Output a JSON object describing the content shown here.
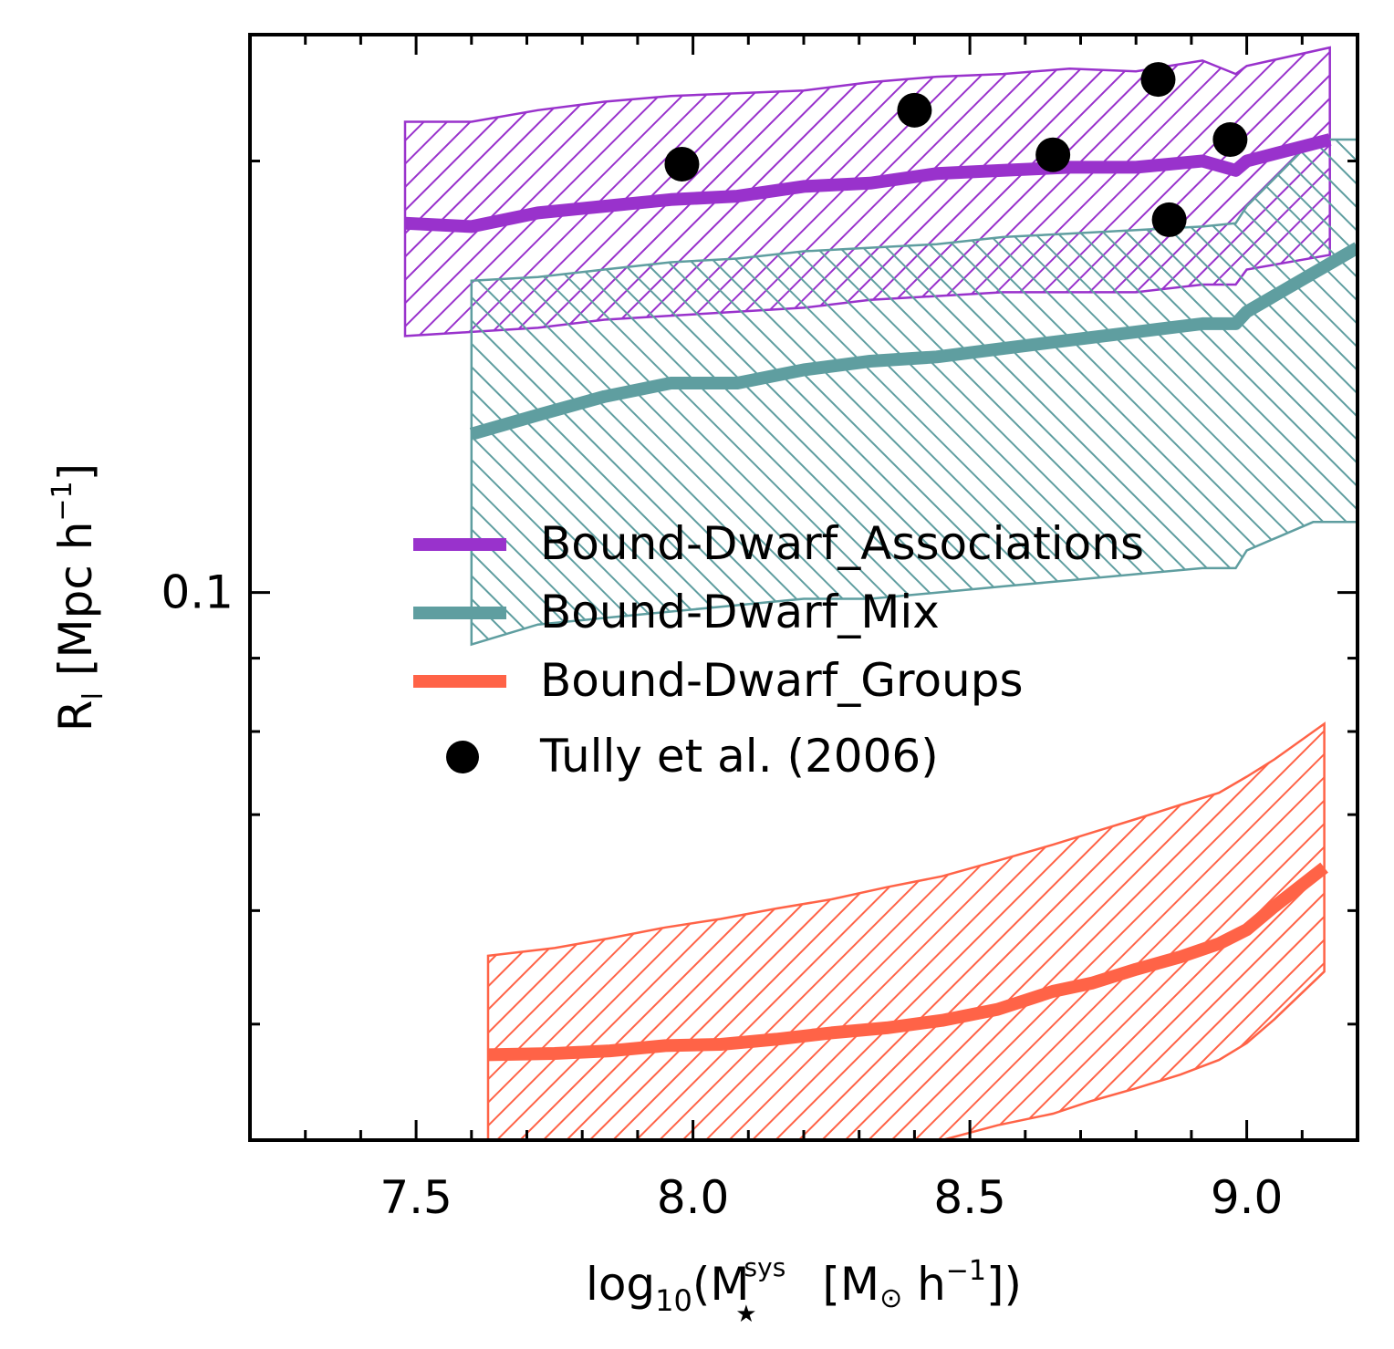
{
  "chart_data": {
    "type": "line",
    "x_label": {
      "prefix": "log",
      "sub": "10",
      "open": "(M",
      "sup": "sys",
      "star": "★",
      "unit_open": "[M",
      "sun": "⊙",
      "unit_h": " h",
      "unit_sup": "−1",
      "close": "])"
    },
    "y_label": {
      "base": "R",
      "sub": "l",
      "unit_open": "[Mpc h",
      "unit_sup": "−1",
      "close": "]"
    },
    "xlim": [
      7.2,
      9.2
    ],
    "ylim": [
      0.0415,
      0.245
    ],
    "yscale": "log",
    "x_ticks": [
      {
        "value": 7.5,
        "label": "7.5"
      },
      {
        "value": 8.0,
        "label": "8.0"
      },
      {
        "value": 8.5,
        "label": "8.5"
      },
      {
        "value": 9.0,
        "label": "9.0"
      }
    ],
    "y_ticks": [
      {
        "value": 0.1,
        "label": "0.1"
      }
    ],
    "y_minor_ticks": [
      0.05,
      0.06,
      0.07,
      0.08,
      0.09,
      0.2
    ],
    "series": [
      {
        "name": "Bound-Dwarf_Associations",
        "color": "#9932CC",
        "x": [
          7.48,
          7.6,
          7.72,
          7.84,
          7.96,
          8.08,
          8.2,
          8.32,
          8.44,
          8.56,
          8.68,
          8.8,
          8.92,
          8.98,
          9.0,
          9.15
        ],
        "median": [
          0.181,
          0.18,
          0.184,
          0.186,
          0.188,
          0.189,
          0.192,
          0.193,
          0.196,
          0.197,
          0.198,
          0.198,
          0.2,
          0.197,
          0.2,
          0.207
        ],
        "upper": [
          0.213,
          0.213,
          0.217,
          0.22,
          0.222,
          0.223,
          0.224,
          0.227,
          0.229,
          0.23,
          0.232,
          0.231,
          0.235,
          0.23,
          0.233,
          0.24
        ],
        "lower": [
          0.151,
          0.152,
          0.153,
          0.155,
          0.156,
          0.157,
          0.158,
          0.16,
          0.161,
          0.162,
          0.162,
          0.162,
          0.164,
          0.164,
          0.168,
          0.172
        ]
      },
      {
        "name": "Bound-Dwarf_Mix",
        "color": "#5F9EA0",
        "x": [
          7.6,
          7.72,
          7.84,
          7.96,
          8.08,
          8.2,
          8.32,
          8.44,
          8.56,
          8.68,
          8.8,
          8.92,
          8.98,
          9.0,
          9.12,
          9.2
        ],
        "median": [
          0.129,
          0.133,
          0.137,
          0.14,
          0.14,
          0.143,
          0.145,
          0.146,
          0.148,
          0.15,
          0.152,
          0.154,
          0.154,
          0.157,
          0.167,
          0.174
        ],
        "upper": [
          0.165,
          0.166,
          0.168,
          0.17,
          0.171,
          0.173,
          0.174,
          0.175,
          0.177,
          0.178,
          0.179,
          0.18,
          0.181,
          0.186,
          0.207,
          0.207
        ],
        "lower": [
          0.092,
          0.095,
          0.096,
          0.097,
          0.098,
          0.099,
          0.099,
          0.1,
          0.101,
          0.102,
          0.103,
          0.104,
          0.104,
          0.107,
          0.112,
          0.112
        ]
      },
      {
        "name": "Bound-Dwarf_Groups",
        "color": "#FF6347",
        "x": [
          7.63,
          7.75,
          7.85,
          7.95,
          8.05,
          8.15,
          8.25,
          8.35,
          8.45,
          8.55,
          8.65,
          8.72,
          8.8,
          8.88,
          8.95,
          9.0,
          9.05,
          9.14
        ],
        "median": [
          0.0476,
          0.0477,
          0.0479,
          0.0483,
          0.0484,
          0.0488,
          0.0493,
          0.0497,
          0.0503,
          0.0512,
          0.0527,
          0.0534,
          0.0546,
          0.0557,
          0.0569,
          0.0582,
          0.0604,
          0.0643
        ],
        "upper": [
          0.0558,
          0.0565,
          0.0574,
          0.0584,
          0.0592,
          0.0602,
          0.0611,
          0.0623,
          0.0634,
          0.065,
          0.0667,
          0.068,
          0.0695,
          0.0711,
          0.0725,
          0.0744,
          0.0765,
          0.081
        ],
        "lower": [
          0.0415,
          0.0415,
          0.0415,
          0.0415,
          0.0415,
          0.0415,
          0.0415,
          0.0415,
          0.0415,
          0.0425,
          0.0433,
          0.0442,
          0.0451,
          0.0461,
          0.0472,
          0.0485,
          0.0504,
          0.0544
        ]
      }
    ],
    "scatter": {
      "name": "Tully et al. (2006)",
      "color": "#000000",
      "x": [
        7.98,
        8.4,
        8.65,
        8.84,
        8.86,
        8.97
      ],
      "y": [
        0.199,
        0.217,
        0.202,
        0.228,
        0.182,
        0.207
      ]
    },
    "legend": {
      "placement": "middle-left",
      "entries": [
        "Bound-Dwarf_Associations",
        "Bound-Dwarf_Mix",
        "Bound-Dwarf_Groups",
        "Tully et al. (2006)"
      ]
    }
  }
}
